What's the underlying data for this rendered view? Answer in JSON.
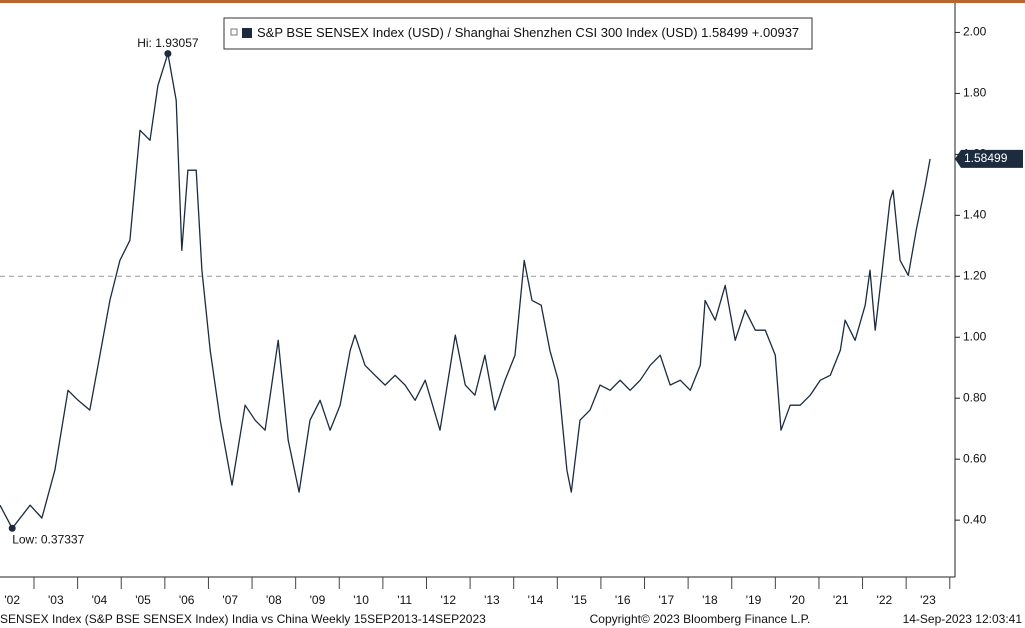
{
  "chart_data": {
    "type": "line",
    "legend_label": "S&P BSE SENSEX Index (USD) / Shanghai Shenzhen CSI 300 Index (USD)",
    "change_label": "+.00937",
    "x": [
      2002.22,
      2002.5,
      2002.91,
      2003.18,
      2003.48,
      2003.78,
      2004.01,
      2004.28,
      2004.51,
      2004.74,
      2004.97,
      2005.2,
      2005.43,
      2005.66,
      2005.84,
      2006.07,
      2006.26,
      2006.39,
      2006.53,
      2006.72,
      2006.85,
      2007.04,
      2007.27,
      2007.54,
      2007.84,
      2008.07,
      2008.3,
      2008.6,
      2008.83,
      2009.08,
      2009.33,
      2009.56,
      2009.79,
      2010.02,
      2010.25,
      2010.36,
      2010.59,
      2010.82,
      2011.05,
      2011.28,
      2011.51,
      2011.74,
      2011.97,
      2012.31,
      2012.66,
      2012.89,
      2013.11,
      2013.34,
      2013.57,
      2013.8,
      2014.03,
      2014.24,
      2014.42,
      2014.63,
      2014.83,
      2015.02,
      2015.22,
      2015.32,
      2015.52,
      2015.75,
      2015.98,
      2016.21,
      2016.44,
      2016.67,
      2016.9,
      2017.13,
      2017.36,
      2017.59,
      2017.82,
      2018.05,
      2018.28,
      2018.39,
      2018.62,
      2018.85,
      2019.08,
      2019.31,
      2019.54,
      2019.77,
      2020.0,
      2020.13,
      2020.34,
      2020.57,
      2020.8,
      2021.03,
      2021.26,
      2021.49,
      2021.6,
      2021.83,
      2022.06,
      2022.17,
      2022.29,
      2022.45,
      2022.63,
      2022.7,
      2022.86,
      2023.05,
      2023.23,
      2023.44,
      2023.55
    ],
    "series": [
      {
        "name": "S&P BSE SENSEX Index (USD) / Shanghai Shenzhen CSI 300 Index (USD)",
        "color": "#1c2b3e",
        "values": [
          0.449,
          0.37337,
          0.449,
          0.407,
          0.564,
          0.826,
          0.793,
          0.761,
          0.941,
          1.121,
          1.252,
          1.318,
          1.679,
          1.646,
          1.826,
          1.93057,
          1.777,
          1.285,
          1.548,
          1.548,
          1.22,
          0.957,
          0.728,
          0.515,
          0.777,
          0.728,
          0.695,
          0.99,
          0.662,
          0.492,
          0.728,
          0.793,
          0.695,
          0.777,
          0.957,
          1.007,
          0.908,
          0.875,
          0.843,
          0.875,
          0.843,
          0.793,
          0.859,
          0.695,
          1.007,
          0.843,
          0.81,
          0.941,
          0.761,
          0.859,
          0.941,
          1.252,
          1.121,
          1.105,
          0.957,
          0.859,
          0.564,
          0.492,
          0.728,
          0.761,
          0.843,
          0.826,
          0.859,
          0.826,
          0.859,
          0.908,
          0.941,
          0.843,
          0.859,
          0.826,
          0.908,
          1.121,
          1.056,
          1.17,
          0.99,
          1.089,
          1.023,
          1.023,
          0.941,
          0.695,
          0.777,
          0.777,
          0.81,
          0.859,
          0.875,
          0.957,
          1.056,
          0.99,
          1.105,
          1.22,
          1.023,
          1.22,
          1.449,
          1.482,
          1.252,
          1.203,
          1.351,
          1.498,
          1.58499
        ]
      }
    ],
    "annotations": [
      {
        "label": "Hi: 1.93057",
        "x": 2006.07,
        "value": 1.93057
      },
      {
        "label": "Low: 0.37337",
        "x": 2002.5,
        "value": 0.37337
      }
    ],
    "hline": 1.2,
    "xlim": [
      2002.22,
      2024.12
    ],
    "ylim": [
      0.22,
      2.09
    ],
    "xticks": [
      {
        "value": 2002.5,
        "label": "'02"
      },
      {
        "value": 2003.5,
        "label": "'03"
      },
      {
        "value": 2004.5,
        "label": "'04"
      },
      {
        "value": 2005.5,
        "label": "'05"
      },
      {
        "value": 2006.5,
        "label": "'06"
      },
      {
        "value": 2007.5,
        "label": "'07"
      },
      {
        "value": 2008.5,
        "label": "'08"
      },
      {
        "value": 2009.5,
        "label": "'09"
      },
      {
        "value": 2010.5,
        "label": "'10"
      },
      {
        "value": 2011.5,
        "label": "'11"
      },
      {
        "value": 2012.5,
        "label": "'12"
      },
      {
        "value": 2013.5,
        "label": "'13"
      },
      {
        "value": 2014.5,
        "label": "'14"
      },
      {
        "value": 2015.5,
        "label": "'15"
      },
      {
        "value": 2016.5,
        "label": "'16"
      },
      {
        "value": 2017.5,
        "label": "'17"
      },
      {
        "value": 2018.5,
        "label": "'18"
      },
      {
        "value": 2019.5,
        "label": "'19"
      },
      {
        "value": 2020.5,
        "label": "'20"
      },
      {
        "value": 2021.5,
        "label": "'21"
      },
      {
        "value": 2022.5,
        "label": "'22"
      },
      {
        "value": 2023.5,
        "label": "'23"
      }
    ],
    "yticks": [
      {
        "value": 0.4,
        "label": "0.40"
      },
      {
        "value": 0.6,
        "label": "0.60"
      },
      {
        "value": 0.8,
        "label": "0.80"
      },
      {
        "value": 1.0,
        "label": "1.00"
      },
      {
        "value": 1.2,
        "label": "1.20"
      },
      {
        "value": 1.4,
        "label": "1.40"
      },
      {
        "value": 1.6,
        "label": "1.60"
      },
      {
        "value": 1.8,
        "label": "1.80"
      },
      {
        "value": 2.0,
        "label": "2.00"
      }
    ],
    "footer": {
      "left": "SENSEX Index (S&P BSE SENSEX Index) India vs China  Weekly 15SEP2013-14SEP2023",
      "center": "Copyright© 2023 Bloomberg Finance L.P.",
      "right": "14-Sep-2023 12:03:41"
    }
  }
}
